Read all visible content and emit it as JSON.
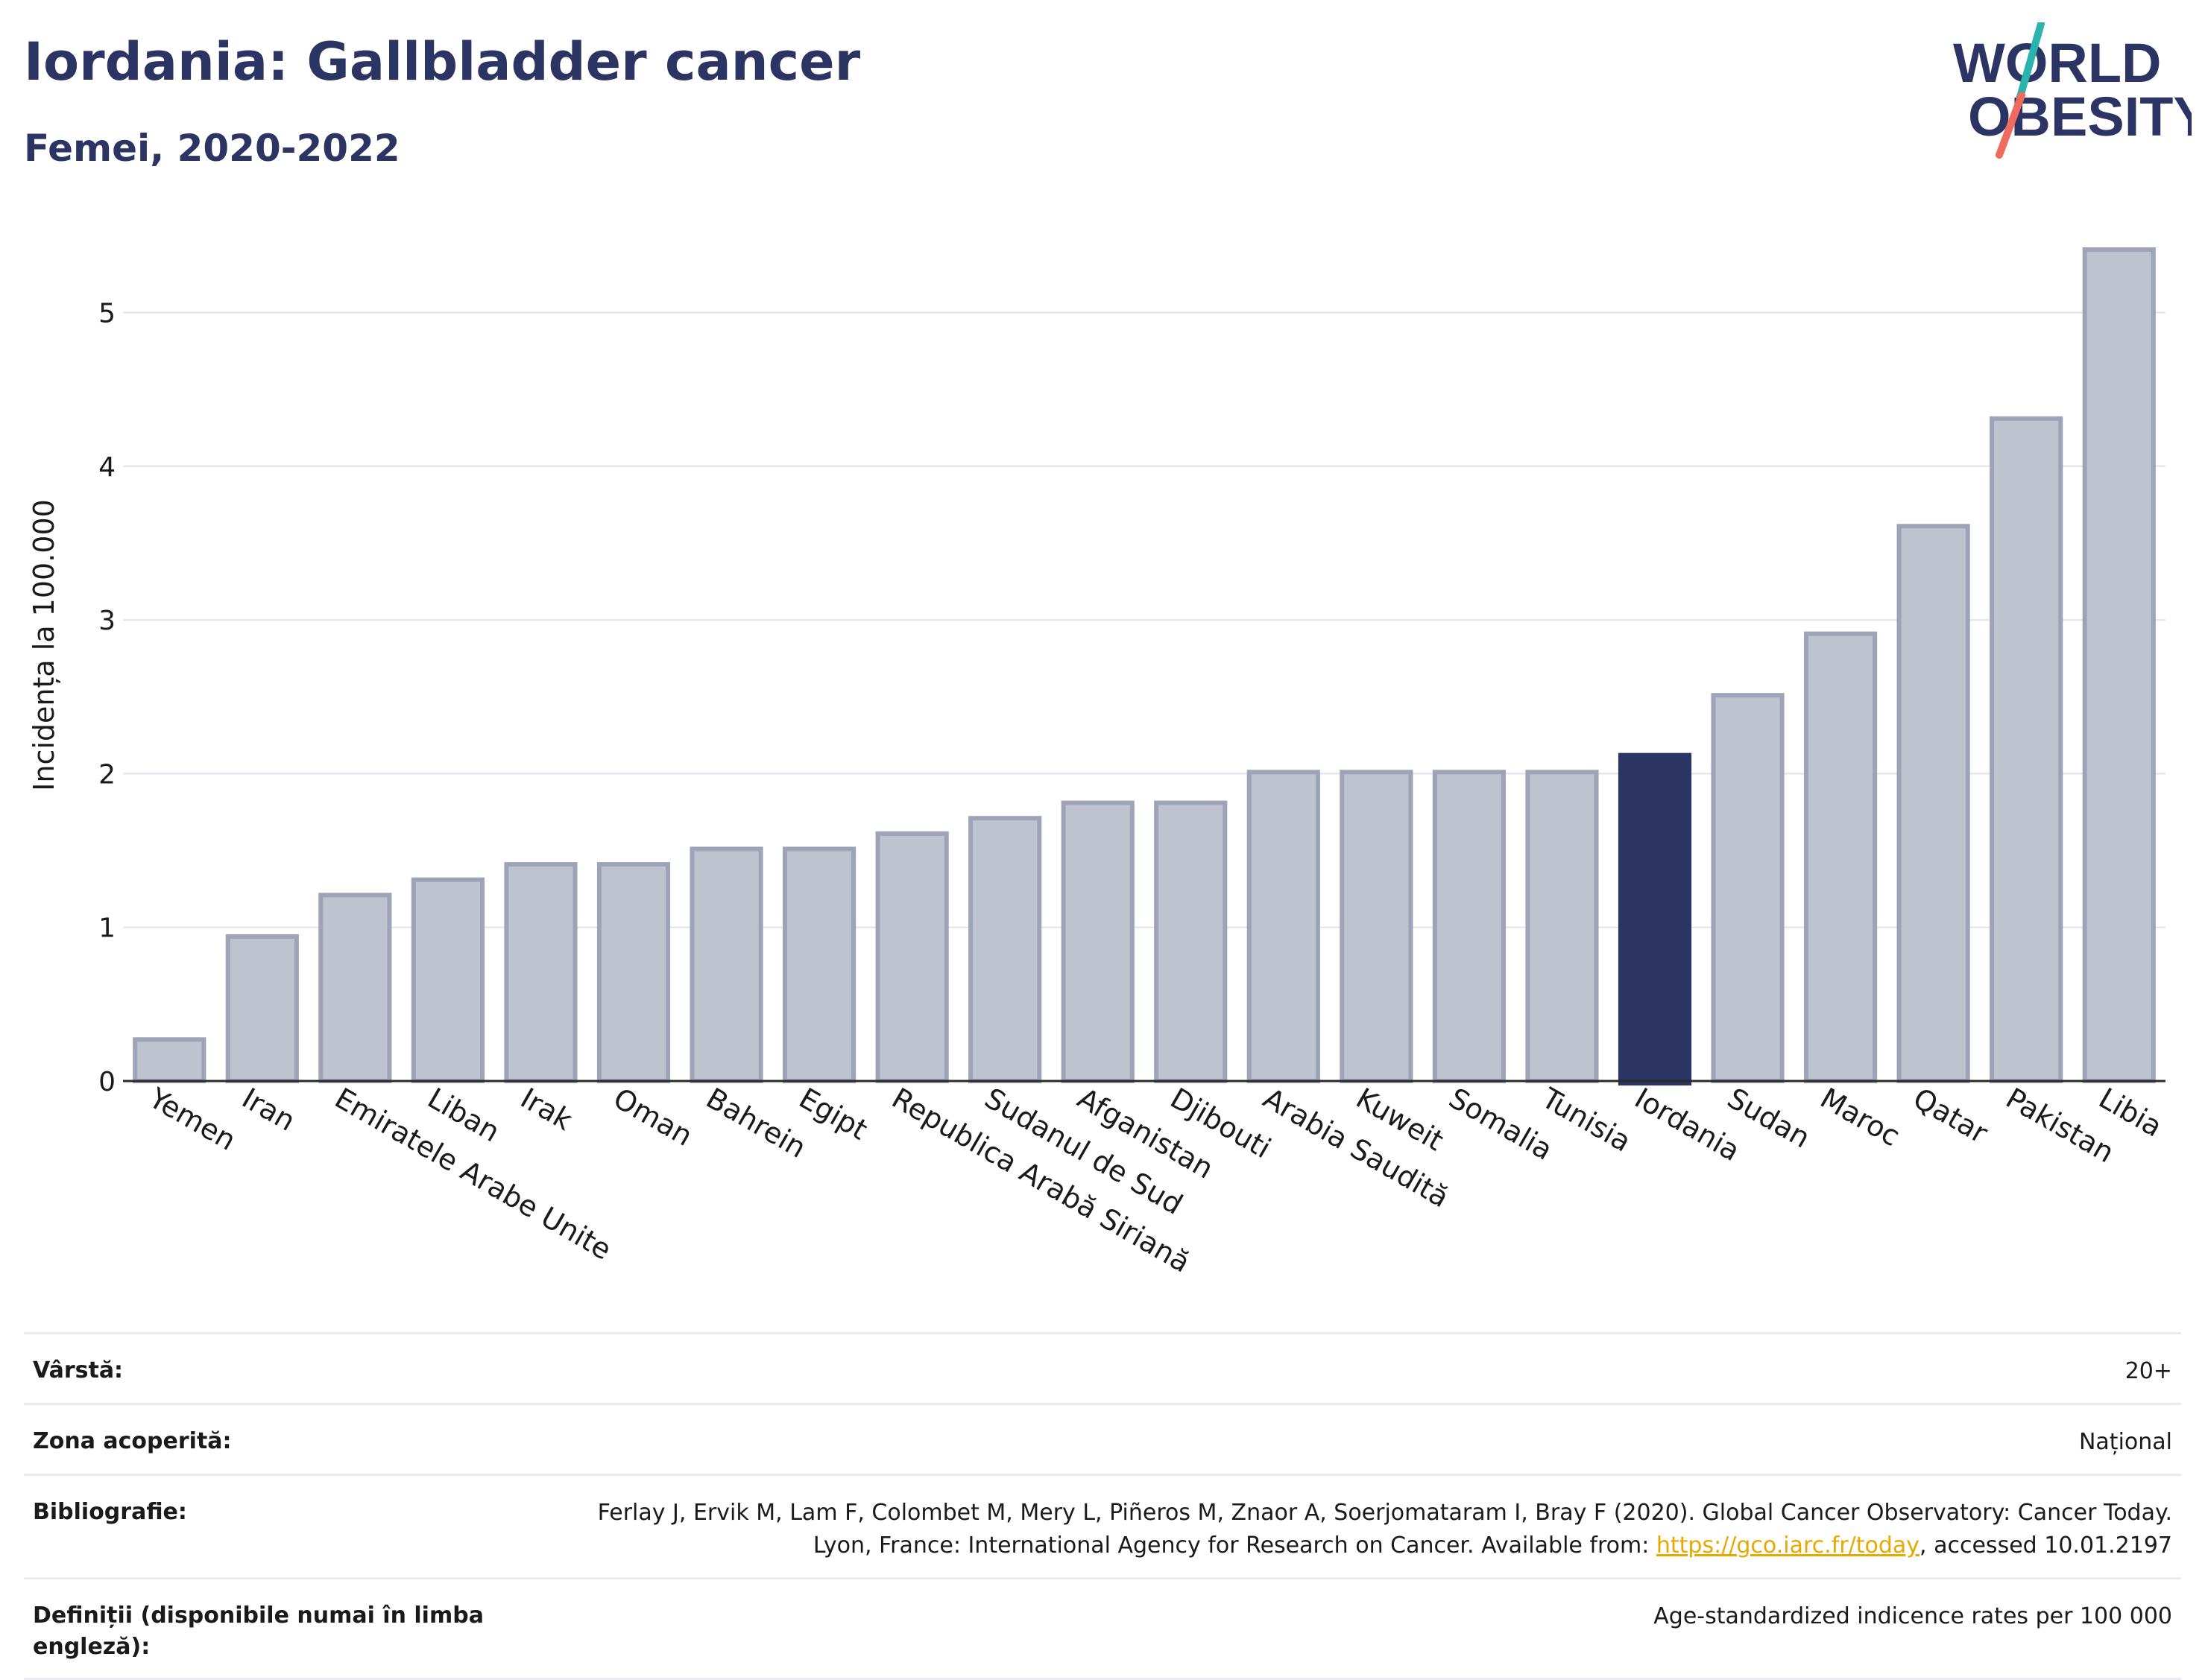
{
  "header": {
    "title": "Iordania: Gallbladder cancer",
    "subtitle": "Femei, 2020-2022"
  },
  "logo": {
    "line1": "WORLD",
    "line2": "OBESITY",
    "name": "world-obesity-logo"
  },
  "colors": {
    "bar": "#bfc3d0",
    "bar_stroke": "#9ea3b8",
    "highlight": "#2b3462",
    "grid": "#e5e7ec",
    "title": "#2b3462",
    "link": "#e9a800"
  },
  "chart_data": {
    "type": "bar",
    "title": "Iordania: Gallbladder cancer",
    "subtitle": "Femei, 2020-2022",
    "ylabel": "Incidența la 100.000",
    "xlabel": "",
    "ylim": [
      0,
      5.5
    ],
    "yticks": [
      0,
      1,
      2,
      3,
      4,
      5
    ],
    "grid": true,
    "highlight": "Iordania",
    "categories": [
      "Yemen",
      "Iran",
      "Emiratele Arabe Unite",
      "Liban",
      "Irak",
      "Oman",
      "Bahrein",
      "Egipt",
      "Republica Arabă Siriană",
      "Sudanul de Sud",
      "Afganistan",
      "Djibouti",
      "Arabia Saudită",
      "Kuweit",
      "Somalia",
      "Tunisia",
      "Iordania",
      "Sudan",
      "Maroc",
      "Qatar",
      "Pakistan",
      "Libia"
    ],
    "values": [
      0.27,
      0.94,
      1.21,
      1.31,
      1.41,
      1.41,
      1.51,
      1.51,
      1.61,
      1.71,
      1.81,
      1.81,
      2.01,
      2.01,
      2.01,
      2.01,
      2.12,
      2.51,
      2.91,
      3.61,
      4.31,
      5.41
    ]
  },
  "info": {
    "rows": [
      {
        "label": "Vârstă:",
        "value": "20+"
      },
      {
        "label": "Zona acoperită:",
        "value": "Național"
      },
      {
        "label": "Bibliografie:",
        "value_pre": "Ferlay J, Ervik M, Lam F, Colombet M, Mery L, Piñeros M, Znaor A, Soerjomataram I, Bray F (2020). Global Cancer Observatory: Cancer Today. Lyon, France: International Agency for Research on Cancer. Available from: ",
        "link": "https://gco.iarc.fr/today",
        "value_post": ", accessed 10.01.2197"
      },
      {
        "label": "Definiții (disponibile numai în limba engleză):",
        "value": "Age-standardized indicence rates per 100 000"
      }
    ]
  }
}
